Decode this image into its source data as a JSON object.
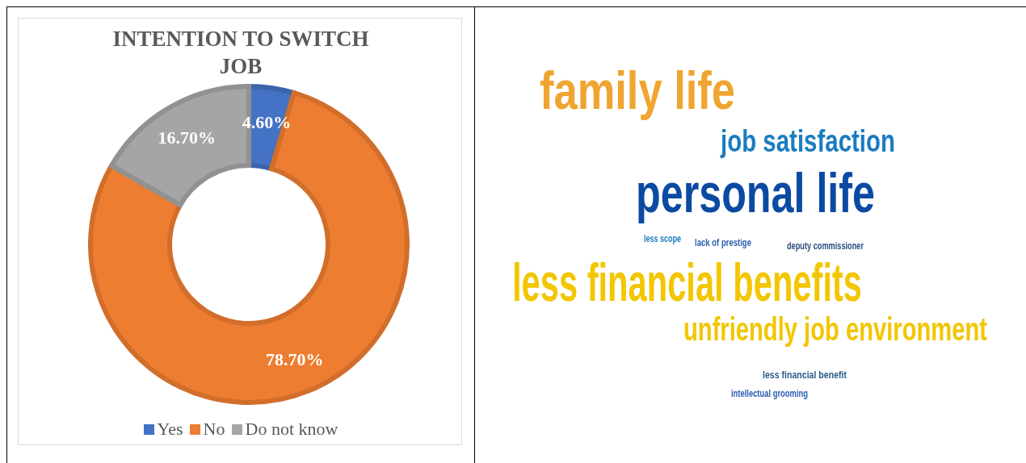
{
  "chart_data": [
    {
      "type": "donut",
      "title": "INTENTION TO SWITCH JOB",
      "categories": [
        "Yes",
        "No",
        "Do not know"
      ],
      "values": [
        4.6,
        78.7,
        16.7
      ],
      "colors": [
        "#4472c4",
        "#ed7d31",
        "#a5a5a5"
      ],
      "value_labels": [
        "4.60%",
        "78.70%",
        "16.70%"
      ],
      "legend": "bottom"
    },
    {
      "type": "other",
      "annotations": [
        "family life",
        "job satisfaction",
        "personal life",
        "less scope",
        "lack of prestige",
        "deputy commissioner",
        "less financial benefits",
        "unfriendly job environment",
        "less financial benefit",
        "intellectual grooming"
      ]
    }
  ]
}
